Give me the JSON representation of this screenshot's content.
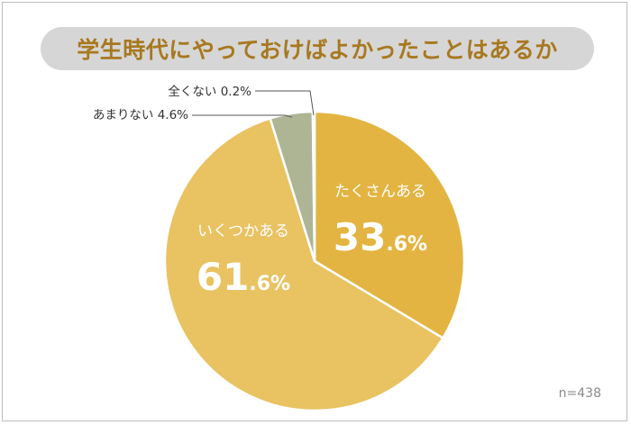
{
  "chart_data": {
    "type": "pie",
    "title": "学生時代にやっておけばよかったことはあるか",
    "sample_note": "n=438",
    "start_angle_deg": 0,
    "direction": "clockwise",
    "slices": [
      {
        "label": "たくさんある",
        "value": 33.6,
        "int_part": "33",
        "dec_part": ".6%",
        "color": "#e3b441",
        "label_position": "inside"
      },
      {
        "label": "いくつかある",
        "value": 61.6,
        "int_part": "61",
        "dec_part": ".6%",
        "color": "#e9c262",
        "label_position": "inside"
      },
      {
        "label": "あまりない",
        "value": 4.6,
        "value_text": "4.6%",
        "color": "#adb595",
        "label_position": "outside"
      },
      {
        "label": "全くない",
        "value": 0.2,
        "value_text": "0.2%",
        "color": "#8f9a74",
        "label_position": "outside"
      }
    ],
    "legend": "none"
  }
}
